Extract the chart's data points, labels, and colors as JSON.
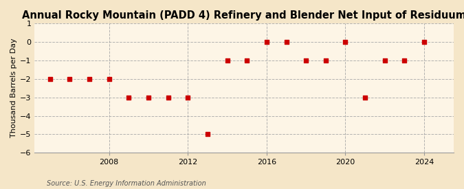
{
  "title": "Annual Rocky Mountain (PADD 4) Refinery and Blender Net Input of Residuum",
  "ylabel": "Thousand Barrels per Day",
  "source": "Source: U.S. Energy Information Administration",
  "background_color": "#f5e6c8",
  "plot_bg_color": "#fdf5e6",
  "marker_color": "#cc0000",
  "grid_color": "#aaaaaa",
  "years": [
    2005,
    2006,
    2007,
    2008,
    2009,
    2010,
    2011,
    2012,
    2013,
    2014,
    2015,
    2016,
    2017,
    2018,
    2019,
    2020,
    2021,
    2022,
    2023,
    2024
  ],
  "values": [
    -2,
    -2,
    -2,
    -2,
    -3,
    -3,
    -3,
    -3,
    -5,
    -1,
    -1,
    0,
    0,
    -1,
    -1,
    0,
    -3,
    -1,
    -1,
    0
  ],
  "ylim": [
    -6,
    1
  ],
  "yticks": [
    -6,
    -5,
    -4,
    -3,
    -2,
    -1,
    0,
    1
  ],
  "xtick_years": [
    2008,
    2012,
    2016,
    2020,
    2024
  ],
  "title_fontsize": 10.5,
  "label_fontsize": 8,
  "source_fontsize": 7,
  "xlim_left": 2004.2,
  "xlim_right": 2025.5
}
